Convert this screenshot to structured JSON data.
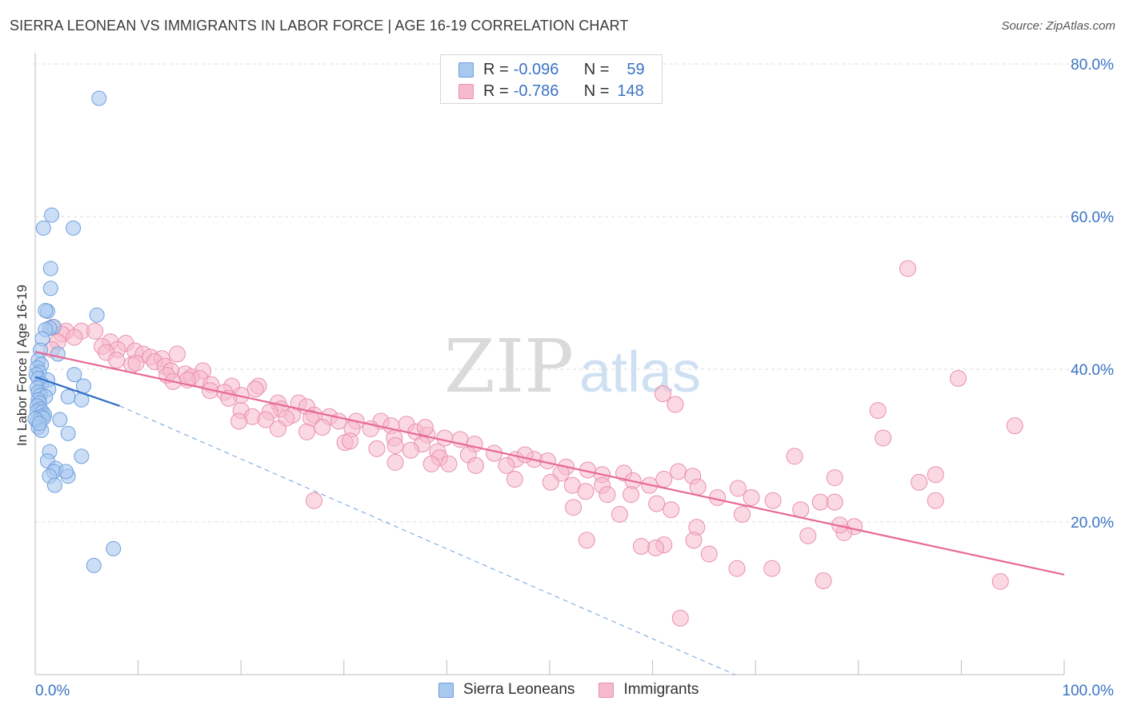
{
  "title": "SIERRA LEONEAN VS IMMIGRANTS IN LABOR FORCE | AGE 16-19 CORRELATION CHART",
  "source": "Source: ZipAtlas.com",
  "watermark": {
    "zip": "ZIP",
    "atlas": "atlas"
  },
  "colors": {
    "blue_fill": "#a9c8f0",
    "blue_stroke": "#6f9fdc",
    "blue_line": "#2f6fc8",
    "pink_fill": "#f7b9cc",
    "pink_stroke": "#e98fae",
    "pink_line": "#e76a98",
    "axis_label": "#3a74c4",
    "grid": "#dcdcdc"
  },
  "legend": {
    "rows": [
      {
        "r_label": "R =",
        "r_value": "-0.096",
        "n_label": "N =",
        "n_value": "59"
      },
      {
        "r_label": "R =",
        "r_value": "-0.786",
        "n_label": "N =",
        "n_value": "148"
      }
    ]
  },
  "bottom_legend": [
    "Sierra Leoneans",
    "Immigrants"
  ],
  "chart_data": {
    "type": "scatter",
    "title": "SIERRA LEONEAN VS IMMIGRANTS IN LABOR FORCE | AGE 16-19 CORRELATION CHART",
    "ylabel": "In Labor Force | Age 16-19",
    "xlabel": "",
    "xlim": [
      0,
      100
    ],
    "ylim": [
      0,
      80
    ],
    "x_tick_labels": [
      "0.0%",
      "100.0%"
    ],
    "y_tick_labels": [
      "20.0%",
      "40.0%",
      "60.0%",
      "80.0%"
    ],
    "y_ticks": [
      20,
      40,
      60,
      80
    ],
    "series": [
      {
        "name": "Sierra Leoneans",
        "r": -0.096,
        "n": 59,
        "trend": {
          "x": [
            0,
            8.2
          ],
          "y": [
            39.0,
            35.2
          ]
        },
        "trend_extension": {
          "x": [
            8.2,
            68
          ],
          "y": [
            35.2,
            0
          ]
        },
        "points": [
          [
            6.2,
            75.5
          ],
          [
            1.6,
            60.2
          ],
          [
            0.8,
            58.5
          ],
          [
            3.7,
            58.5
          ],
          [
            1.5,
            53.2
          ],
          [
            1.5,
            50.6
          ],
          [
            1.2,
            47.6
          ],
          [
            1.0,
            47.7
          ],
          [
            6.0,
            47.1
          ],
          [
            1.8,
            45.6
          ],
          [
            1.4,
            45.4
          ],
          [
            1.0,
            45.2
          ],
          [
            0.7,
            44.0
          ],
          [
            0.5,
            42.5
          ],
          [
            2.2,
            42.0
          ],
          [
            0.3,
            41.2
          ],
          [
            0.6,
            40.6
          ],
          [
            0.2,
            40.2
          ],
          [
            0.4,
            39.6
          ],
          [
            0.1,
            39.3
          ],
          [
            3.8,
            39.3
          ],
          [
            0.3,
            38.8
          ],
          [
            1.2,
            38.6
          ],
          [
            0.6,
            38.1
          ],
          [
            0.2,
            37.6
          ],
          [
            4.7,
            37.8
          ],
          [
            1.3,
            37.4
          ],
          [
            0.3,
            37.0
          ],
          [
            0.5,
            36.6
          ],
          [
            1.0,
            36.4
          ],
          [
            3.2,
            36.4
          ],
          [
            0.3,
            36.0
          ],
          [
            4.5,
            36.0
          ],
          [
            0.4,
            35.6
          ],
          [
            0.2,
            35.2
          ],
          [
            0.5,
            34.8
          ],
          [
            0.2,
            34.5
          ],
          [
            0.7,
            34.4
          ],
          [
            0.9,
            34.0
          ],
          [
            0.6,
            33.8
          ],
          [
            2.4,
            33.4
          ],
          [
            0.2,
            33.2
          ],
          [
            0.8,
            33.6
          ],
          [
            0.3,
            32.4
          ],
          [
            0.6,
            32.0
          ],
          [
            3.2,
            31.6
          ],
          [
            1.4,
            29.2
          ],
          [
            4.5,
            28.6
          ],
          [
            1.2,
            28.0
          ],
          [
            2.0,
            27.0
          ],
          [
            1.8,
            26.6
          ],
          [
            1.4,
            26.0
          ],
          [
            3.2,
            26.0
          ],
          [
            3.0,
            26.6
          ],
          [
            1.9,
            24.8
          ],
          [
            7.6,
            16.5
          ],
          [
            5.7,
            14.3
          ],
          [
            0.0,
            33.5
          ],
          [
            0.4,
            32.9
          ]
        ]
      },
      {
        "name": "Immigrants",
        "r": -0.786,
        "n": 148,
        "trend": {
          "x": [
            0,
            100
          ],
          "y": [
            42.3,
            13.1
          ]
        },
        "points": [
          [
            1.7,
            45.5
          ],
          [
            3.0,
            45.0
          ],
          [
            4.5,
            45.0
          ],
          [
            5.8,
            45.0
          ],
          [
            2.6,
            44.6
          ],
          [
            3.8,
            44.2
          ],
          [
            2.2,
            43.6
          ],
          [
            7.3,
            43.6
          ],
          [
            6.5,
            43.0
          ],
          [
            8.8,
            43.4
          ],
          [
            1.6,
            42.6
          ],
          [
            8.0,
            42.6
          ],
          [
            9.7,
            42.4
          ],
          [
            6.9,
            42.2
          ],
          [
            10.5,
            42.0
          ],
          [
            13.8,
            42.0
          ],
          [
            11.2,
            41.6
          ],
          [
            12.3,
            41.4
          ],
          [
            7.9,
            41.2
          ],
          [
            11.6,
            41.0
          ],
          [
            9.4,
            40.6
          ],
          [
            12.6,
            40.4
          ],
          [
            13.2,
            39.8
          ],
          [
            16.3,
            39.8
          ],
          [
            14.6,
            39.4
          ],
          [
            12.8,
            39.2
          ],
          [
            15.2,
            39.0
          ],
          [
            16.0,
            38.8
          ],
          [
            14.8,
            38.6
          ],
          [
            13.4,
            38.4
          ],
          [
            17.1,
            38.0
          ],
          [
            19.1,
            37.8
          ],
          [
            21.7,
            37.8
          ],
          [
            21.4,
            37.4
          ],
          [
            17.0,
            37.2
          ],
          [
            18.4,
            37.0
          ],
          [
            20.0,
            36.6
          ],
          [
            18.8,
            36.2
          ],
          [
            23.6,
            35.6
          ],
          [
            25.6,
            35.6
          ],
          [
            26.4,
            35.1
          ],
          [
            23.9,
            34.8
          ],
          [
            20.0,
            34.6
          ],
          [
            22.8,
            34.4
          ],
          [
            25.0,
            34.0
          ],
          [
            27.1,
            34.0
          ],
          [
            21.1,
            33.8
          ],
          [
            28.6,
            33.8
          ],
          [
            24.4,
            33.6
          ],
          [
            26.8,
            33.6
          ],
          [
            22.4,
            33.4
          ],
          [
            29.5,
            33.2
          ],
          [
            31.2,
            33.2
          ],
          [
            33.6,
            33.2
          ],
          [
            19.8,
            33.2
          ],
          [
            36.1,
            32.8
          ],
          [
            34.6,
            32.6
          ],
          [
            30.8,
            32.2
          ],
          [
            27.9,
            32.4
          ],
          [
            32.6,
            32.2
          ],
          [
            23.6,
            32.2
          ],
          [
            26.4,
            31.8
          ],
          [
            37.0,
            31.8
          ],
          [
            38.1,
            31.4
          ],
          [
            34.9,
            31.0
          ],
          [
            39.8,
            31.0
          ],
          [
            41.3,
            30.8
          ],
          [
            30.1,
            30.4
          ],
          [
            37.6,
            30.2
          ],
          [
            42.7,
            30.2
          ],
          [
            35.0,
            30.0
          ],
          [
            33.2,
            29.6
          ],
          [
            36.5,
            29.4
          ],
          [
            39.1,
            29.2
          ],
          [
            44.6,
            29.0
          ],
          [
            42.1,
            28.8
          ],
          [
            39.3,
            28.4
          ],
          [
            46.7,
            28.2
          ],
          [
            48.5,
            28.2
          ],
          [
            47.6,
            28.8
          ],
          [
            49.8,
            28.0
          ],
          [
            35.0,
            27.8
          ],
          [
            40.2,
            27.6
          ],
          [
            42.8,
            27.4
          ],
          [
            45.8,
            27.4
          ],
          [
            38.5,
            27.6
          ],
          [
            51.6,
            27.2
          ],
          [
            53.7,
            26.8
          ],
          [
            51.1,
            26.4
          ],
          [
            55.1,
            26.2
          ],
          [
            57.2,
            26.4
          ],
          [
            62.5,
            26.6
          ],
          [
            63.9,
            26.0
          ],
          [
            46.6,
            25.6
          ],
          [
            50.1,
            25.2
          ],
          [
            58.1,
            25.4
          ],
          [
            61.1,
            25.6
          ],
          [
            52.2,
            24.8
          ],
          [
            55.1,
            24.8
          ],
          [
            59.7,
            24.8
          ],
          [
            64.4,
            24.6
          ],
          [
            68.3,
            24.4
          ],
          [
            53.5,
            24.0
          ],
          [
            55.6,
            23.6
          ],
          [
            57.9,
            23.6
          ],
          [
            69.6,
            23.2
          ],
          [
            71.7,
            22.8
          ],
          [
            76.3,
            22.6
          ],
          [
            77.7,
            22.6
          ],
          [
            66.3,
            23.2
          ],
          [
            60.4,
            22.4
          ],
          [
            52.3,
            21.9
          ],
          [
            61.8,
            21.6
          ],
          [
            68.7,
            21.0
          ],
          [
            74.4,
            21.6
          ],
          [
            56.8,
            21.0
          ],
          [
            64.3,
            19.3
          ],
          [
            79.6,
            19.4
          ],
          [
            78.6,
            18.6
          ],
          [
            75.1,
            18.2
          ],
          [
            64.0,
            17.6
          ],
          [
            61.1,
            17.0
          ],
          [
            60.3,
            16.6
          ],
          [
            58.9,
            16.8
          ],
          [
            53.6,
            17.6
          ],
          [
            65.5,
            15.8
          ],
          [
            68.2,
            13.9
          ],
          [
            71.6,
            13.9
          ],
          [
            76.6,
            12.3
          ],
          [
            62.7,
            7.4
          ],
          [
            84.8,
            53.2
          ],
          [
            89.7,
            38.8
          ],
          [
            95.2,
            32.6
          ],
          [
            81.9,
            34.6
          ],
          [
            82.4,
            31.0
          ],
          [
            87.5,
            26.2
          ],
          [
            85.9,
            25.2
          ],
          [
            87.5,
            22.8
          ],
          [
            73.8,
            28.6
          ],
          [
            77.7,
            25.8
          ],
          [
            78.2,
            19.6
          ],
          [
            93.8,
            12.2
          ],
          [
            61.0,
            36.8
          ],
          [
            62.2,
            35.4
          ],
          [
            27.1,
            22.8
          ],
          [
            30.6,
            30.6
          ],
          [
            37.9,
            32.4
          ],
          [
            9.8,
            40.8
          ]
        ]
      }
    ]
  }
}
